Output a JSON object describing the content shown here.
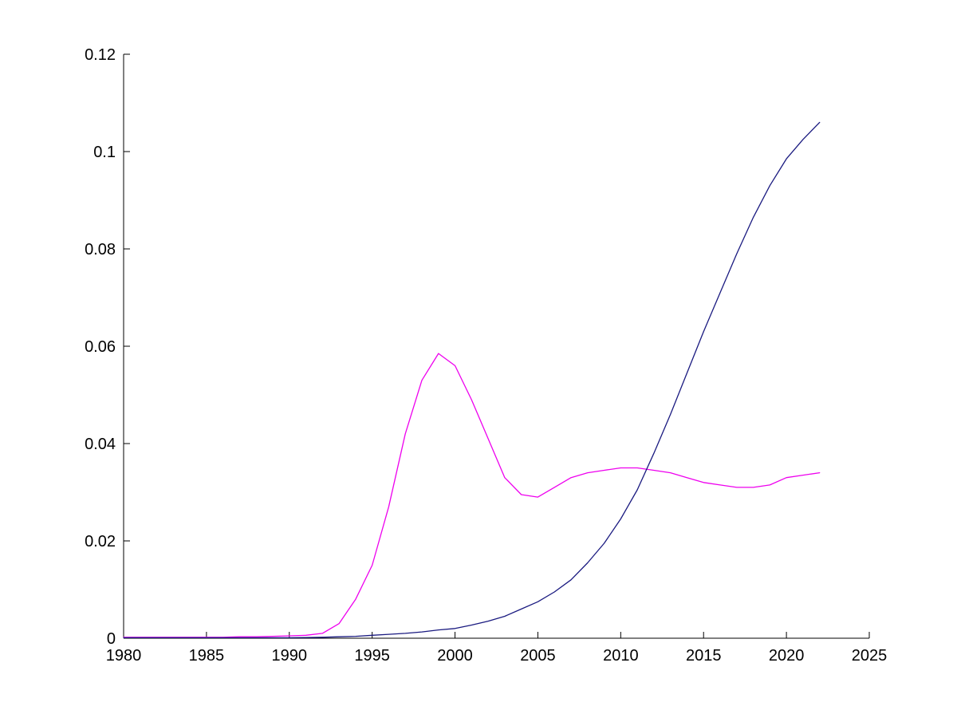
{
  "figure": {
    "background": "#ffffff"
  },
  "chart_data": {
    "type": "line",
    "title": "",
    "xlabel": "",
    "ylabel": "",
    "grid": false,
    "legend": null,
    "box": false,
    "xlim": [
      1980,
      2025
    ],
    "ylim": [
      0,
      0.12
    ],
    "x_ticks": [
      1980,
      1985,
      1990,
      1995,
      2000,
      2005,
      2010,
      2015,
      2020,
      2025
    ],
    "x_tick_labels": [
      "1980",
      "1985",
      "1990",
      "1995",
      "2000",
      "2005",
      "2010",
      "2015",
      "2020",
      "2025"
    ],
    "y_ticks": [
      0,
      0.02,
      0.04,
      0.06,
      0.08,
      0.1,
      0.12
    ],
    "y_tick_labels": [
      "0",
      "0.02",
      "0.04",
      "0.06",
      "0.08",
      "0.1",
      "0.12"
    ],
    "axis_color": "#000000",
    "text_color": "#000000",
    "tick_label_font_px": 20,
    "x": [
      1980,
      1981,
      1982,
      1983,
      1984,
      1985,
      1986,
      1987,
      1988,
      1989,
      1990,
      1991,
      1992,
      1993,
      1994,
      1995,
      1996,
      1997,
      1998,
      1999,
      2000,
      2001,
      2002,
      2003,
      2004,
      2005,
      2006,
      2007,
      2008,
      2009,
      2010,
      2011,
      2012,
      2013,
      2014,
      2015,
      2016,
      2017,
      2018,
      2019,
      2020,
      2021,
      2022
    ],
    "series": [
      {
        "name": "magenta-line",
        "color": "#ee00ee",
        "values": [
          0.0002,
          0.0002,
          0.0002,
          0.0002,
          0.0002,
          0.0002,
          0.0002,
          0.0003,
          0.0003,
          0.0004,
          0.0005,
          0.0006,
          0.001,
          0.003,
          0.008,
          0.015,
          0.027,
          0.042,
          0.053,
          0.0585,
          0.056,
          0.049,
          0.041,
          0.033,
          0.0295,
          0.029,
          0.031,
          0.033,
          0.034,
          0.0345,
          0.035,
          0.035,
          0.0345,
          0.034,
          0.033,
          0.032,
          0.0315,
          0.031,
          0.031,
          0.0315,
          0.033,
          0.0335,
          0.034
        ]
      },
      {
        "name": "navy-line",
        "color": "#1a1a80",
        "values": [
          0.0001,
          0.0001,
          0.0001,
          0.0001,
          0.0001,
          0.0001,
          0.0001,
          0.0001,
          0.0001,
          0.0001,
          0.0001,
          0.00015,
          0.0002,
          0.0003,
          0.0004,
          0.0006,
          0.0008,
          0.001,
          0.0013,
          0.0017,
          0.002,
          0.0027,
          0.0035,
          0.0045,
          0.006,
          0.0075,
          0.0095,
          0.012,
          0.0155,
          0.0195,
          0.0245,
          0.0305,
          0.038,
          0.046,
          0.0545,
          0.063,
          0.071,
          0.079,
          0.0865,
          0.093,
          0.0985,
          0.1025,
          0.106
        ]
      }
    ]
  }
}
